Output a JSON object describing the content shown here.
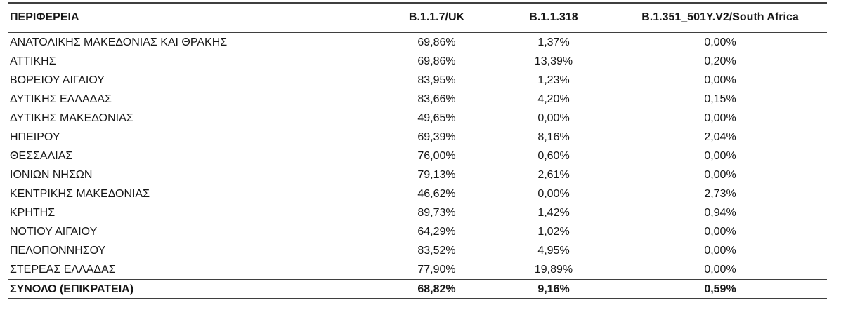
{
  "colors": {
    "text": "#161616",
    "rule_line": "#3f3f3f",
    "background": "#ffffff"
  },
  "chart_data": {
    "type": "table",
    "title": "",
    "columns": [
      "ΠΕΡΙΦΕΡΕΙΑ",
      "B.1.1.7/UK",
      "B.1.1.318",
      "B.1.351_501Y.V2/South Africa"
    ],
    "rows": [
      [
        "ΑΝΑΤΟΛΙΚΗΣ ΜΑΚΕΔΟΝΙΑΣ ΚΑΙ ΘΡΑΚΗΣ",
        "69,86%",
        "1,37%",
        "0,00%"
      ],
      [
        "ΑΤΤΙΚΗΣ",
        "69,86%",
        "13,39%",
        "0,20%"
      ],
      [
        "ΒΟΡΕΙΟΥ ΑΙΓΑΙΟΥ",
        "83,95%",
        "1,23%",
        "0,00%"
      ],
      [
        "ΔΥΤΙΚΗΣ ΕΛΛΑΔΑΣ",
        "83,66%",
        "4,20%",
        "0,15%"
      ],
      [
        "ΔΥΤΙΚΗΣ ΜΑΚΕΔΟΝΙΑΣ",
        "49,65%",
        "0,00%",
        "0,00%"
      ],
      [
        "ΗΠΕΙΡΟΥ",
        "69,39%",
        "8,16%",
        "2,04%"
      ],
      [
        "ΘΕΣΣΑΛΙΑΣ",
        "76,00%",
        "0,60%",
        "0,00%"
      ],
      [
        "ΙΟΝΙΩΝ ΝΗΣΩΝ",
        "79,13%",
        "2,61%",
        "0,00%"
      ],
      [
        "ΚΕΝΤΡΙΚΗΣ ΜΑΚΕΔΟΝΙΑΣ",
        "46,62%",
        "0,00%",
        "2,73%"
      ],
      [
        "ΚΡΗΤΗΣ",
        "89,73%",
        "1,42%",
        "0,94%"
      ],
      [
        "ΝΟΤΙΟΥ ΑΙΓΑΙΟΥ",
        "64,29%",
        "1,02%",
        "0,00%"
      ],
      [
        "ΠΕΛΟΠΟΝΝΗΣΟΥ",
        "83,52%",
        "4,95%",
        "0,00%"
      ],
      [
        "ΣΤΕΡΕΑΣ ΕΛΛΑΔΑΣ",
        "77,90%",
        "19,89%",
        "0,00%"
      ]
    ],
    "total_row": [
      "ΣΥΝΟΛΟ (ΕΠΙΚΡΑΤΕΙΑ)",
      "68,82%",
      "9,16%",
      "0,59%"
    ]
  }
}
